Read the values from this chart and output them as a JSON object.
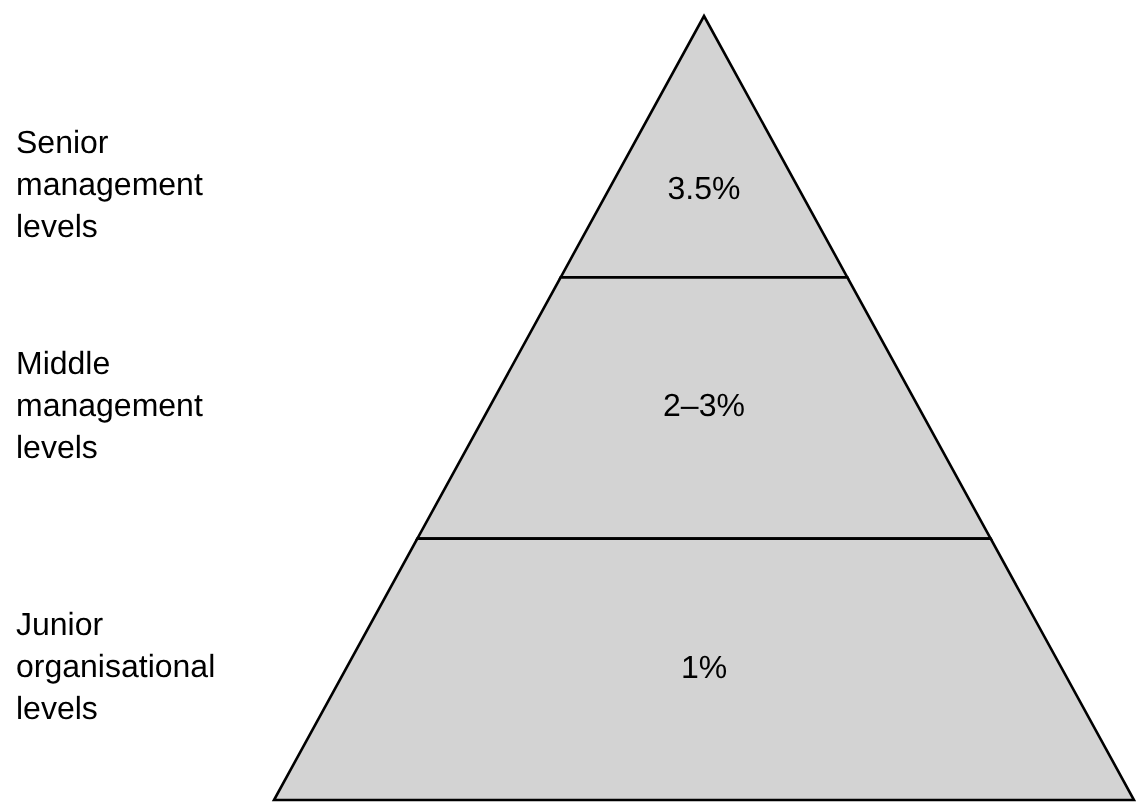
{
  "chart_data": {
    "type": "other",
    "categories": [
      "Senior management levels",
      "Middle management levels",
      "Junior organisational levels"
    ],
    "values": [
      3.5,
      null,
      1
    ],
    "value_labels": [
      "3.5%",
      "2–3%",
      "1%"
    ],
    "color": "#d3d3d3"
  }
}
